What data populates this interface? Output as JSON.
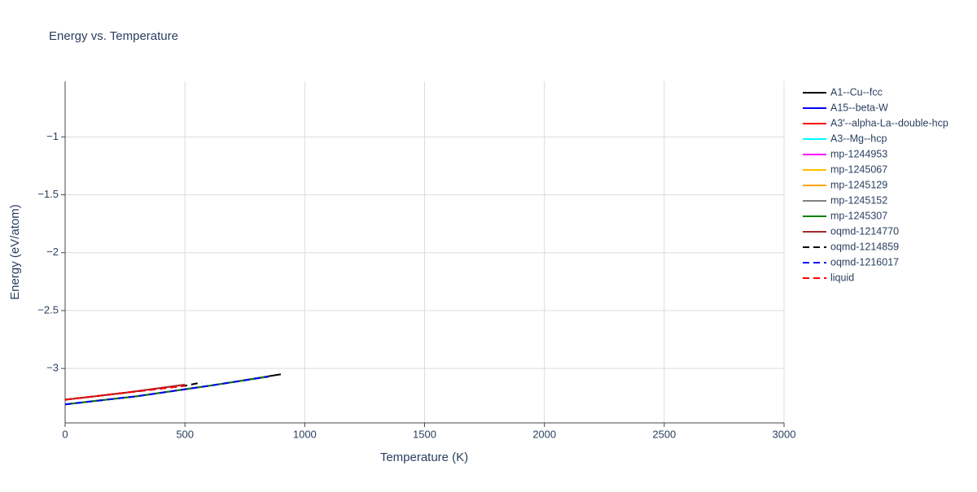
{
  "chart_data": {
    "type": "line",
    "title": "Energy vs. Temperature",
    "x_label": "Temperature (K)",
    "y_label": "Energy (eV/atom)",
    "xlim": [
      0,
      3000
    ],
    "xticks": [
      0,
      500,
      1000,
      1500,
      2000,
      2500,
      3000
    ],
    "ylim": [
      -3.47,
      -0.52
    ],
    "yticks": [
      {
        "value": -3,
        "label": "−3"
      },
      {
        "value": -2.5,
        "label": "−2.5"
      },
      {
        "value": -2,
        "label": "−2"
      },
      {
        "value": -1.5,
        "label": "−1.5"
      },
      {
        "value": -1,
        "label": "−1"
      }
    ],
    "grid": true,
    "series": [
      {
        "name": "A1--Cu--fcc",
        "color": "#000000",
        "dash": false,
        "x": [
          0,
          300,
          600,
          900
        ],
        "values": [
          -3.31,
          -3.24,
          -3.15,
          -3.05
        ]
      },
      {
        "name": "A15--beta-W",
        "color": "#0000ff",
        "dash": false,
        "x": [
          0,
          300,
          600,
          850
        ],
        "values": [
          -3.31,
          -3.24,
          -3.15,
          -3.07
        ]
      },
      {
        "name": "A3'--alpha-La--double-hcp",
        "color": "#ff0000",
        "dash": false,
        "x": [
          0,
          250,
          500
        ],
        "values": [
          -3.27,
          -3.21,
          -3.14
        ]
      },
      {
        "name": "A3--Mg--hcp",
        "color": "#00ffff",
        "dash": false,
        "x": [
          0,
          300,
          600,
          850
        ],
        "values": [
          -3.31,
          -3.24,
          -3.15,
          -3.07
        ]
      },
      {
        "name": "mp-1244953",
        "color": "#ff00ff",
        "dash": false,
        "x": [
          0,
          300,
          600,
          850
        ],
        "values": [
          -3.31,
          -3.24,
          -3.15,
          -3.07
        ]
      },
      {
        "name": "mp-1245067",
        "color": "#ffbf00",
        "dash": false,
        "x": [
          0,
          300,
          600,
          850
        ],
        "values": [
          -3.31,
          -3.24,
          -3.15,
          -3.07
        ]
      },
      {
        "name": "mp-1245129",
        "color": "#ffa500",
        "dash": false,
        "x": [
          0,
          300,
          600,
          850
        ],
        "values": [
          -3.31,
          -3.24,
          -3.15,
          -3.07
        ]
      },
      {
        "name": "mp-1245152",
        "color": "#808080",
        "dash": false,
        "x": [
          0,
          300,
          600,
          850
        ],
        "values": [
          -3.31,
          -3.24,
          -3.15,
          -3.07
        ]
      },
      {
        "name": "mp-1245307",
        "color": "#008000",
        "dash": false,
        "x": [
          0,
          300,
          600,
          850
        ],
        "values": [
          -3.31,
          -3.24,
          -3.15,
          -3.07
        ]
      },
      {
        "name": "oqmd-1214770",
        "color": "#a52a2a",
        "dash": false,
        "x": [
          0,
          250,
          500
        ],
        "values": [
          -3.27,
          -3.21,
          -3.14
        ]
      },
      {
        "name": "oqmd-1214859",
        "color": "#000000",
        "dash": true,
        "x": [
          0,
          250,
          500,
          570
        ],
        "values": [
          -3.27,
          -3.21,
          -3.15,
          -3.12
        ]
      },
      {
        "name": "oqmd-1216017",
        "color": "#0000ff",
        "dash": true,
        "x": [
          0,
          300,
          600,
          850
        ],
        "values": [
          -3.31,
          -3.24,
          -3.15,
          -3.07
        ]
      },
      {
        "name": "liquid",
        "color": "#ff0000",
        "dash": true,
        "x": [
          0,
          250,
          500
        ],
        "values": [
          -3.27,
          -3.21,
          -3.15
        ]
      }
    ]
  }
}
